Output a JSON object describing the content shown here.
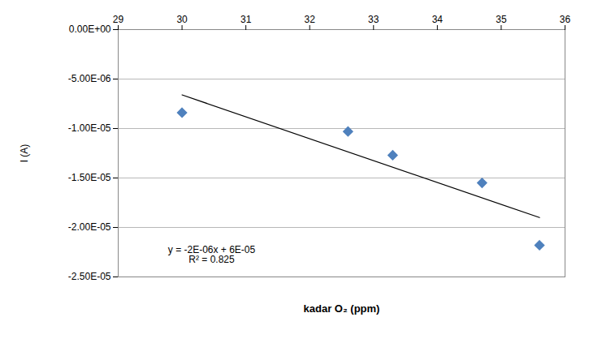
{
  "chart_data": {
    "type": "scatter",
    "x_label": "kadar O₂ (ppm)",
    "y_label": "I (A)",
    "x": [
      30,
      32.6,
      33.3,
      34.7,
      35.6
    ],
    "values": [
      -8.4e-06,
      -1.03e-05,
      -1.27e-05,
      -1.55e-05,
      -2.18e-05
    ],
    "color": "#4f81bd",
    "marker": "diamond",
    "xlim": [
      29,
      36
    ],
    "xticks": [
      29,
      30,
      31,
      32,
      33,
      34,
      35,
      36
    ],
    "ylim": [
      -2.5e-05,
      0
    ],
    "yticks": [
      {
        "value": 0,
        "label": "0.00E+00"
      },
      {
        "value": -5e-06,
        "label": "-5.00E-06"
      },
      {
        "value": -1e-05,
        "label": "-1.00E-05"
      },
      {
        "value": -1.5e-05,
        "label": "-1.50E-05"
      },
      {
        "value": -2e-05,
        "label": "-2.00E-05"
      },
      {
        "value": -2.5e-05,
        "label": "-2.50E-05"
      }
    ],
    "grid": true,
    "trendline": {
      "x": [
        30,
        35.6
      ],
      "values": [
        -6.6e-06,
        -1.9e-05
      ],
      "color": "#000000"
    },
    "annotations": [
      "y = -2E-06x + 6E-05",
      "R² = 0.825"
    ]
  }
}
